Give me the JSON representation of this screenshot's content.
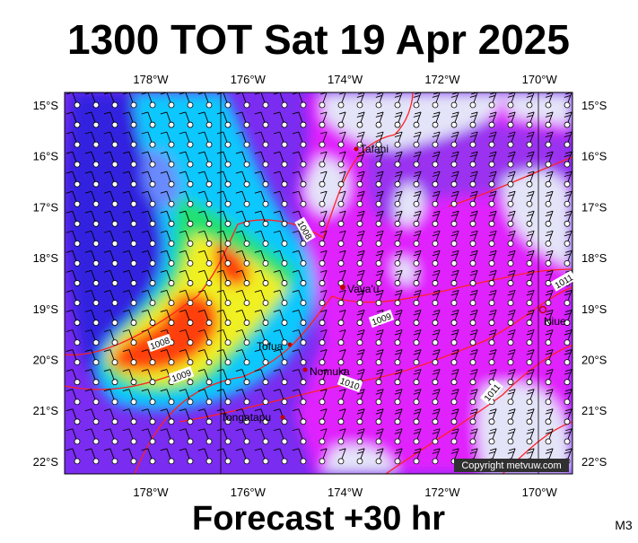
{
  "header": {
    "title": "1300 TOT Sat 19 Apr 2025"
  },
  "map": {
    "lon_labels": [
      "178°W",
      "176°W",
      "174°W",
      "172°W",
      "170°W"
    ],
    "lat_labels": [
      "15°S",
      "16°S",
      "17°S",
      "18°S",
      "19°S",
      "20°S",
      "21°S",
      "22°S"
    ],
    "places": [
      "Tafahi",
      "Vava'u",
      "Tofua",
      "Nomuka",
      "Tongatapu",
      "Niue"
    ],
    "isobar_labels": [
      "1008",
      "1008",
      "1009",
      "1009",
      "1010",
      "1011",
      "1011"
    ],
    "copyright": "Copyright metvuw.com"
  },
  "footer": {
    "text": "Forecast +30 hr",
    "code": "M3"
  }
}
